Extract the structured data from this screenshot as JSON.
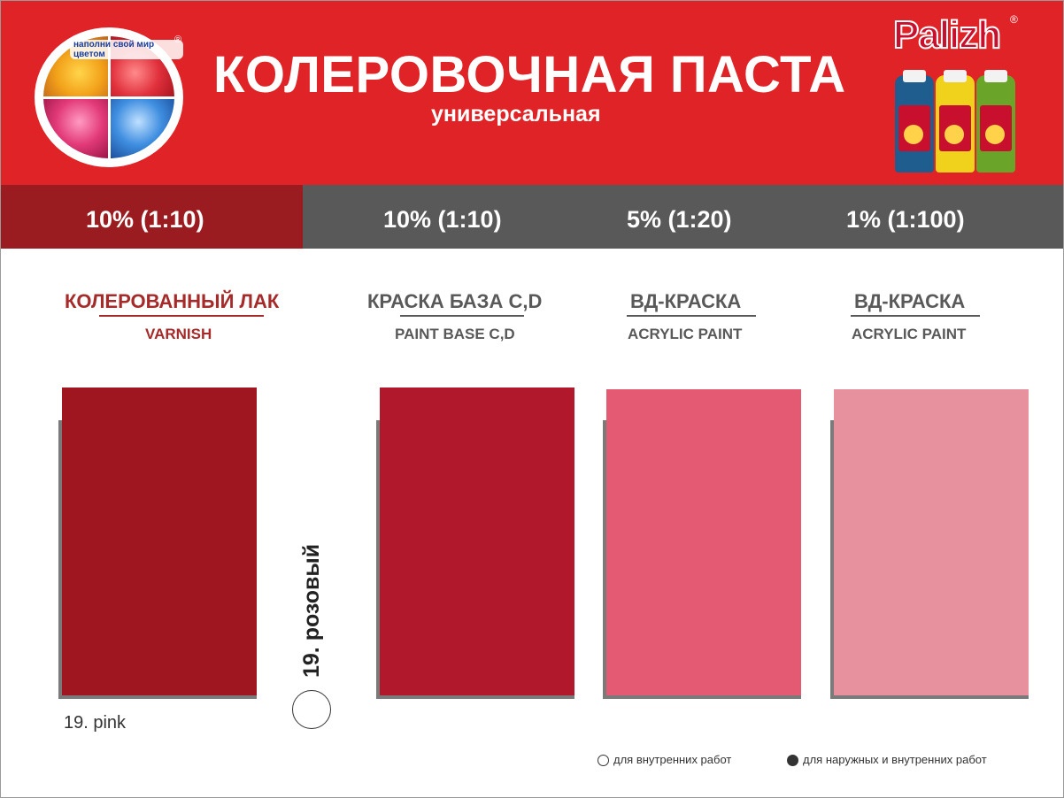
{
  "header": {
    "logo_slogan": "наполни свой мир цветом",
    "registered_mark": "®",
    "title": "КОЛЕРОВОЧНАЯ ПАСТА",
    "subtitle": "универсальная",
    "brand": "Palizh"
  },
  "ratios": [
    "10% (1:10)",
    "10% (1:10)",
    "5% (1:20)",
    "1% (1:100)"
  ],
  "columns": [
    {
      "title": "КОЛЕРОВАННЫЙ ЛАК",
      "subtitle": "VARNISH",
      "color": "#a01620"
    },
    {
      "title": "КРАСКА БАЗА С,D",
      "subtitle": "PAINT BASE C,D",
      "color": "#b2182b"
    },
    {
      "title": "ВД-КРАСКА",
      "subtitle": "ACRYLIC PAINT",
      "color": "#e55a73"
    },
    {
      "title": "ВД-КРАСКА",
      "subtitle": "ACRYLIC PAINT",
      "color": "#e7919f"
    }
  ],
  "color_name_ru": "19. розовый",
  "color_name_en": "19. pink",
  "legend": {
    "indoor": "для внутренних работ",
    "outdoor": "для наружных и внутренних работ"
  },
  "colors": {
    "header_red": "#e02327",
    "band_dark_red": "#9b1c20",
    "band_gray": "#595959",
    "label_red": "#a52a2a",
    "label_gray": "#595959"
  }
}
